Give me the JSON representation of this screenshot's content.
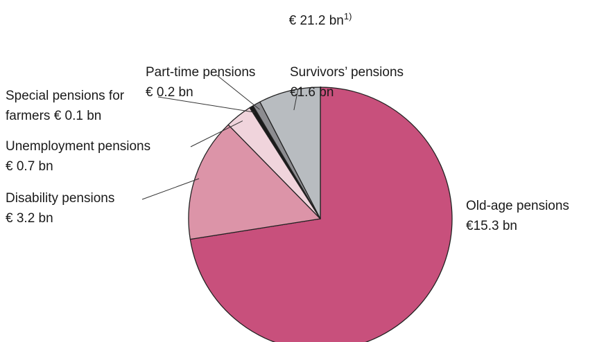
{
  "chart_data": {
    "type": "pie",
    "title": "€ 21.2 bn",
    "title_note": "1)",
    "categories": [
      "Old-age pensions",
      "Disability pensions",
      "Unemployment pensions",
      "Special pensions for farmers",
      "Part-time pensions",
      "Survivors’ pensions"
    ],
    "values": [
      15.3,
      3.2,
      0.7,
      0.1,
      0.2,
      1.6
    ],
    "value_labels": [
      "€15.3 bn",
      "€ 3.2 bn",
      "€ 0.7 bn",
      "€ 0.1 bn",
      "€ 0.2 bn",
      "€1.6 bn"
    ],
    "colors": [
      "#c8507c",
      "#dc94a8",
      "#f0d4dc",
      "#1a1a1a",
      "#8c8c90",
      "#b8bcc0"
    ],
    "start_angle": 0,
    "direction": "clockwise"
  }
}
